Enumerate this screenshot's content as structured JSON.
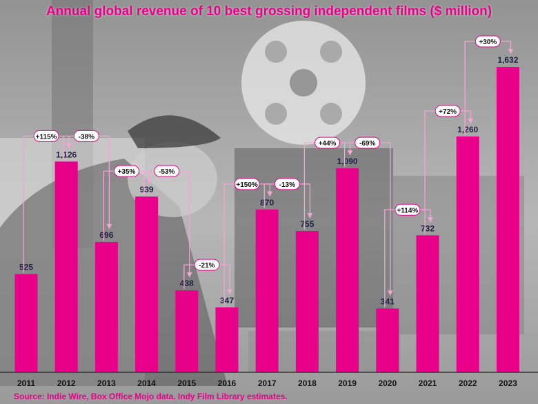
{
  "title": "Annual global revenue of 10 best grossing independent films ($ million)",
  "source": "Source: Indie Wire, Box Office Mojo data. Indy Film Library estimates.",
  "colors": {
    "bar": "#e8008a",
    "title": "#e8008a",
    "connector": "#f2a6d4",
    "pill_border": "#e8008a",
    "label": "#222244"
  },
  "chart_data": {
    "type": "bar",
    "categories": [
      "2011",
      "2012",
      "2013",
      "2014",
      "2015",
      "2016",
      "2017",
      "2018",
      "2019",
      "2020",
      "2021",
      "2022",
      "2023"
    ],
    "values": [
      525,
      1126,
      696,
      939,
      438,
      347,
      870,
      755,
      1090,
      341,
      732,
      1260,
      1632
    ],
    "value_labels": [
      "525",
      "1,126",
      "696",
      "939",
      "438",
      "347",
      "870",
      "755",
      "1,090",
      "341",
      "732",
      "1,260",
      "1,632"
    ],
    "changes": [
      "+115%",
      "-38%",
      "+35%",
      "-53%",
      "-21%",
      "+150%",
      "-13%",
      "+44%",
      "-69%",
      "+114%",
      "+72%",
      "+30%"
    ],
    "ylim": [
      0,
      1632
    ],
    "grid": false,
    "legend": "none"
  }
}
